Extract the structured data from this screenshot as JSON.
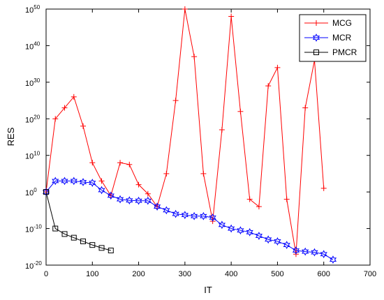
{
  "chart_data": {
    "type": "line",
    "title": "",
    "xlabel": "IT",
    "ylabel": "RES",
    "xlim": [
      0,
      700
    ],
    "ylim_exponent": [
      -20,
      50
    ],
    "y_scale": "log",
    "x_ticks": [
      0,
      100,
      200,
      300,
      400,
      500,
      600,
      700
    ],
    "y_tick_exponents": [
      -20,
      -10,
      0,
      10,
      20,
      30,
      40,
      50
    ],
    "y_tick_base": "10",
    "grid": false,
    "legend_position": "top-right",
    "series": [
      {
        "name": "MCG",
        "color": "#ff0000",
        "marker": "plus",
        "x": [
          0,
          20,
          40,
          60,
          80,
          100,
          120,
          140,
          160,
          180,
          200,
          220,
          240,
          260,
          280,
          300,
          320,
          340,
          360,
          380,
          400,
          420,
          440,
          460,
          480,
          500,
          520,
          540,
          560,
          580,
          600
        ],
        "y_exponent": [
          0,
          20,
          23,
          26,
          18,
          8,
          3,
          -1,
          8,
          7.5,
          2,
          -0.5,
          -4,
          5,
          25,
          50,
          37,
          5,
          -8,
          17,
          48,
          22,
          -2,
          -4,
          29,
          34,
          -2,
          -17,
          23,
          36,
          1
        ]
      },
      {
        "name": "MCR",
        "color": "#0000ff",
        "marker": "hexagram",
        "x": [
          0,
          20,
          40,
          60,
          80,
          100,
          120,
          140,
          160,
          180,
          200,
          220,
          240,
          260,
          280,
          300,
          320,
          340,
          360,
          380,
          400,
          420,
          440,
          460,
          480,
          500,
          520,
          540,
          560,
          580,
          600,
          620
        ],
        "y_exponent": [
          0,
          3,
          3,
          3,
          2.7,
          2.5,
          0.5,
          -1,
          -2,
          -2.3,
          -2.4,
          -2.4,
          -4,
          -5,
          -6,
          -6.3,
          -6.6,
          -6.6,
          -7,
          -9,
          -10,
          -10.5,
          -11,
          -12,
          -13,
          -13.5,
          -14.5,
          -16,
          -16.3,
          -16.5,
          -17,
          -18.5
        ]
      },
      {
        "name": "PMCR",
        "color": "#000000",
        "marker": "square",
        "x": [
          0,
          20,
          40,
          60,
          80,
          100,
          120,
          140
        ],
        "y_exponent": [
          0,
          -10,
          -11.5,
          -12.5,
          -13.5,
          -14.5,
          -15.3,
          -16
        ]
      }
    ]
  }
}
